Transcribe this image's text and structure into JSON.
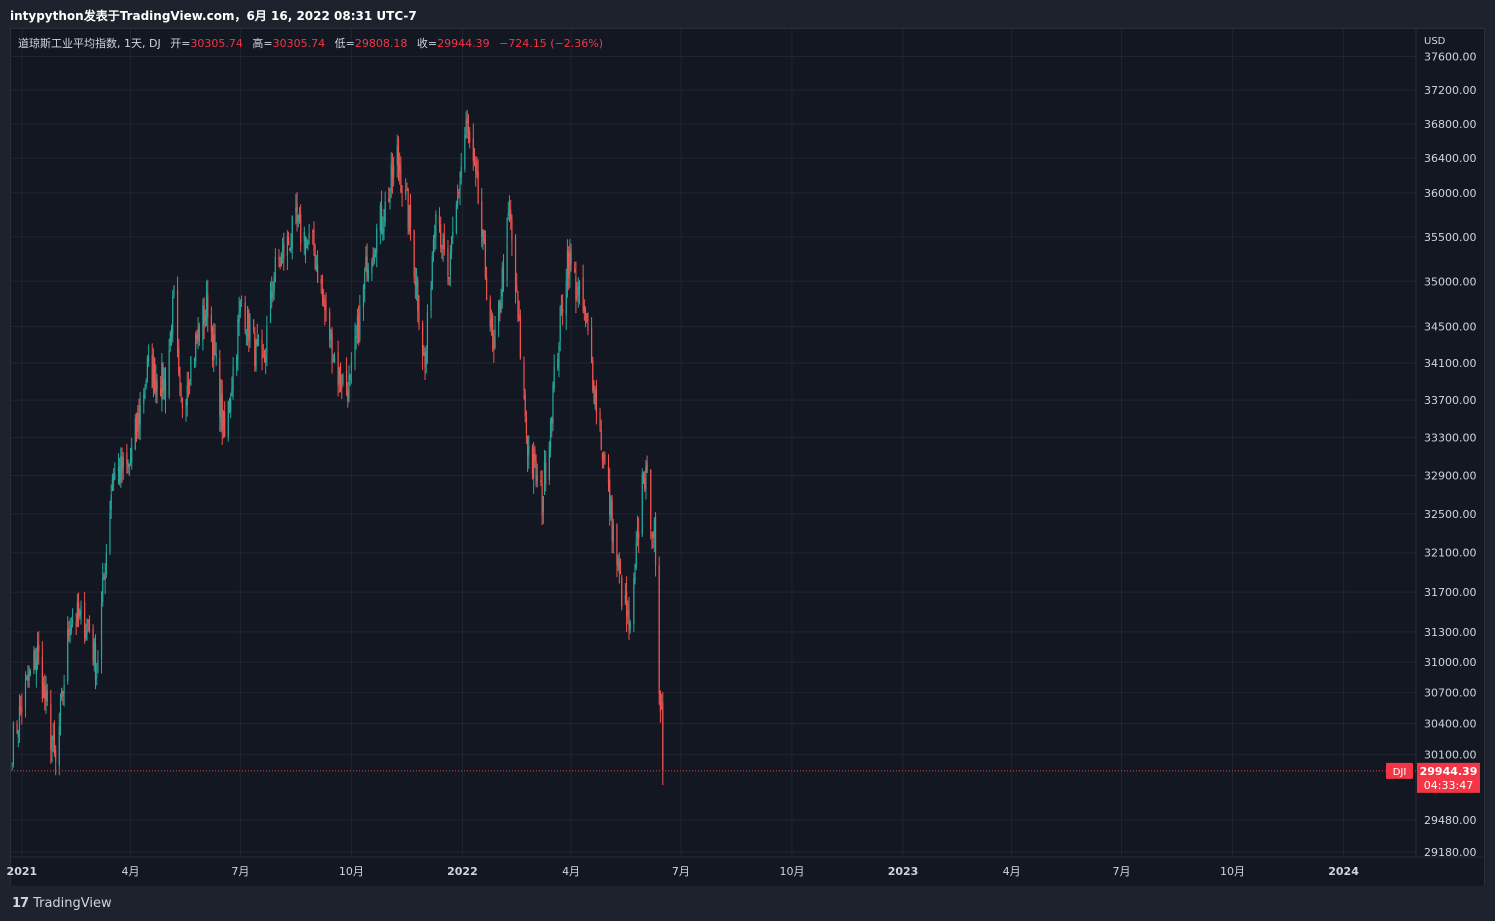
{
  "header": {
    "title": "intypython发表于TradingView.com，6月 16, 2022 08:31 UTC-7"
  },
  "legend": {
    "symbol": "道琼斯工业平均指数, 1天, DJ",
    "open_label": "开=",
    "open": "30305.74",
    "high_label": "高=",
    "high": "30305.74",
    "low_label": "低=",
    "low": "29808.18",
    "close_label": "收=",
    "close": "29944.39",
    "change": "−724.15 (−2.36%)"
  },
  "price_axis": {
    "currency": "USD"
  },
  "price_tag": {
    "symbol": "DJI",
    "price": "29944.39",
    "countdown": "04:33:47"
  },
  "footer": {
    "logo_mark": "17",
    "brand": "TradingView"
  },
  "colors": {
    "up": "#26a69a",
    "down": "#ef5350",
    "background": "#131722",
    "grid": "#1f2431",
    "price_line": "#f23645"
  },
  "chart_data": {
    "type": "line",
    "title": "",
    "scale": "logarithmic",
    "grid": true,
    "ylim": [
      29000,
      37800
    ],
    "y_ticks": [
      37600,
      37200,
      36800,
      36400,
      36000,
      35500,
      35000,
      34500,
      34100,
      33700,
      33300,
      32900,
      32500,
      32100,
      31700,
      31300,
      31000,
      30700,
      30400,
      30100,
      29480,
      29180
    ],
    "y_tick_labels": [
      "37600.00",
      "37200.00",
      "36800.00",
      "36400.00",
      "36000.00",
      "35500.00",
      "35000.00",
      "34500.00",
      "34100.00",
      "33700.00",
      "33300.00",
      "32900.00",
      "32500.00",
      "32100.00",
      "31700.00",
      "31300.00",
      "31000.00",
      "30700.00",
      "30400.00",
      "30100.00",
      "29480.00",
      "29180.00"
    ],
    "x_ticks": [
      {
        "label": "2021",
        "date": "2021-01-01"
      },
      {
        "label": "4月",
        "date": "2021-04-01"
      },
      {
        "label": "7月",
        "date": "2021-07-01"
      },
      {
        "label": "10月",
        "date": "2021-10-01"
      },
      {
        "label": "2022",
        "date": "2022-01-01"
      },
      {
        "label": "4月",
        "date": "2022-04-01"
      },
      {
        "label": "7月",
        "date": "2022-07-01"
      },
      {
        "label": "10月",
        "date": "2022-10-01"
      },
      {
        "label": "2023",
        "date": "2023-01-01"
      },
      {
        "label": "4月",
        "date": "2023-04-01"
      },
      {
        "label": "7月",
        "date": "2023-07-01"
      },
      {
        "label": "10月",
        "date": "2023-10-01"
      },
      {
        "label": "2024",
        "date": "2024-01-01"
      }
    ],
    "x_range": [
      "2020-12-23",
      "2024-03-01"
    ],
    "last_price": 29944.39,
    "series": [
      {
        "points": [
          [
            "2020-12-24",
            30200
          ],
          [
            "2021-01-06",
            30800
          ],
          [
            "2021-01-14",
            31100
          ],
          [
            "2021-01-29",
            29980
          ],
          [
            "2021-02-10",
            31450
          ],
          [
            "2021-02-25",
            31400
          ],
          [
            "2021-03-04",
            30920
          ],
          [
            "2021-03-17",
            32900
          ],
          [
            "2021-03-31",
            32980
          ],
          [
            "2021-04-15",
            34030
          ],
          [
            "2021-04-30",
            33870
          ],
          [
            "2021-05-07",
            34780
          ],
          [
            "2021-05-12",
            33580
          ],
          [
            "2021-05-20",
            34080
          ],
          [
            "2021-06-04",
            34760
          ],
          [
            "2021-06-18",
            33290
          ],
          [
            "2021-07-02",
            34790
          ],
          [
            "2021-07-19",
            33960
          ],
          [
            "2021-07-29",
            35080
          ],
          [
            "2021-08-16",
            35620
          ],
          [
            "2021-08-31",
            35350
          ],
          [
            "2021-09-10",
            34600
          ],
          [
            "2021-09-20",
            33970
          ],
          [
            "2021-09-30",
            33840
          ],
          [
            "2021-10-15",
            35290
          ],
          [
            "2021-10-29",
            35820
          ],
          [
            "2021-11-08",
            36430
          ],
          [
            "2021-11-19",
            35600
          ],
          [
            "2021-12-01",
            34020
          ],
          [
            "2021-12-10",
            35970
          ],
          [
            "2021-12-20",
            34930
          ],
          [
            "2022-01-04",
            36800
          ],
          [
            "2022-01-14",
            35910
          ],
          [
            "2022-01-27",
            34160
          ],
          [
            "2022-02-09",
            35770
          ],
          [
            "2022-02-24",
            33220
          ],
          [
            "2022-03-08",
            32630
          ],
          [
            "2022-03-29",
            35290
          ],
          [
            "2022-04-13",
            34560
          ],
          [
            "2022-04-29",
            32980
          ],
          [
            "2022-05-11",
            31830
          ],
          [
            "2022-05-20",
            31260
          ],
          [
            "2022-05-31",
            32990
          ],
          [
            "2022-06-09",
            32270
          ],
          [
            "2022-06-13",
            30520
          ],
          [
            "2022-06-15",
            30670
          ],
          [
            "2022-06-16",
            29944
          ]
        ]
      }
    ]
  }
}
